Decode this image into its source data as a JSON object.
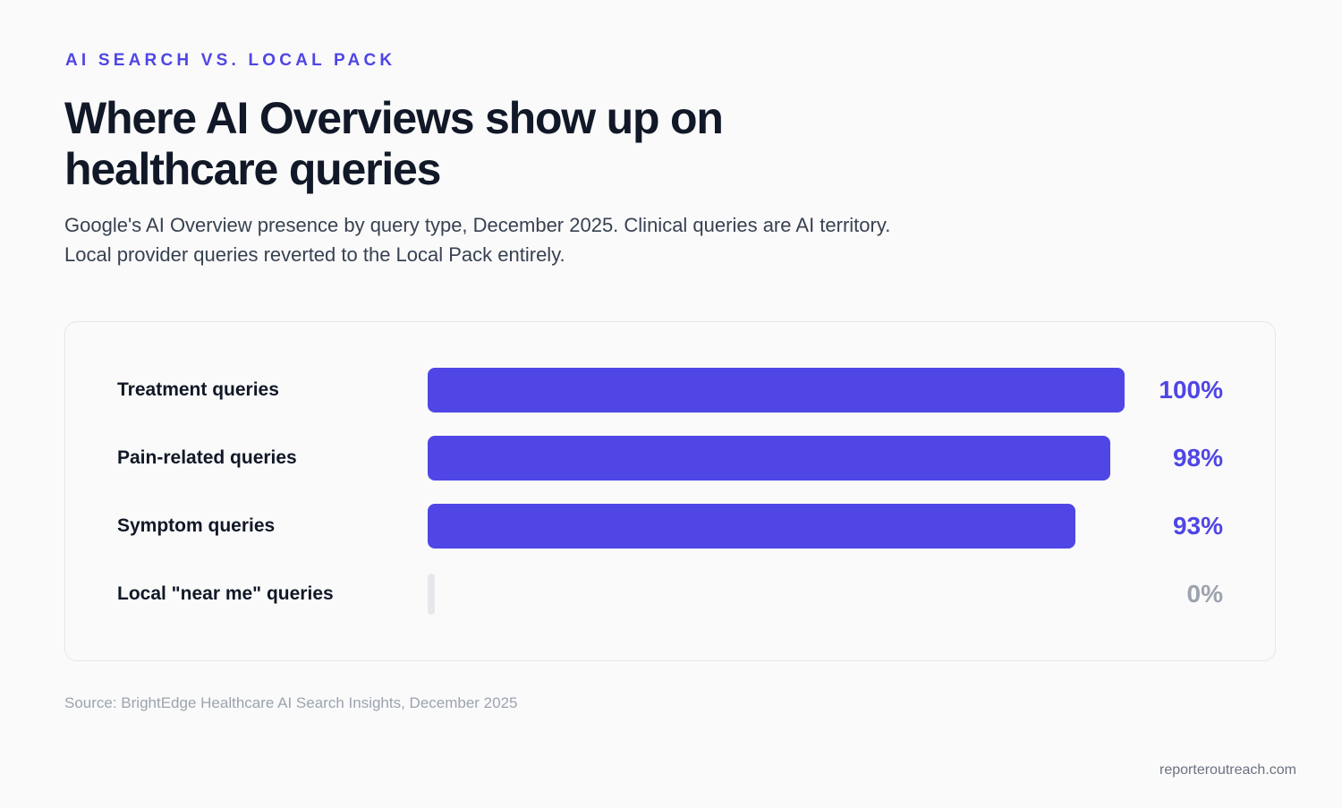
{
  "header": {
    "eyebrow": "AI SEARCH VS. LOCAL PACK",
    "title": "Where AI Overviews show up on healthcare queries",
    "subtitle": "Google's AI Overview presence by query type, December 2025. Clinical queries are AI territory. Local provider queries reverted to the Local Pack entirely."
  },
  "chart_data": {
    "type": "bar",
    "orientation": "horizontal",
    "title": "Where AI Overviews show up on healthcare queries",
    "categories": [
      "Treatment queries",
      "Pain-related queries",
      "Symptom queries",
      "Local \"near me\" queries"
    ],
    "values": [
      100,
      98,
      93,
      0
    ],
    "value_labels": [
      "100%",
      "98%",
      "93%",
      "0%"
    ],
    "xlim": [
      0,
      100
    ],
    "colors": {
      "bar": "#4f46e5",
      "zero_bar": "#e5e7eb",
      "value": "#4f46e5",
      "zero_value": "#9ca3af"
    },
    "grid": false,
    "legend": "none"
  },
  "footer": {
    "source": "Source: BrightEdge Healthcare AI Search Insights, December 2025",
    "site": "reporteroutreach.com"
  }
}
